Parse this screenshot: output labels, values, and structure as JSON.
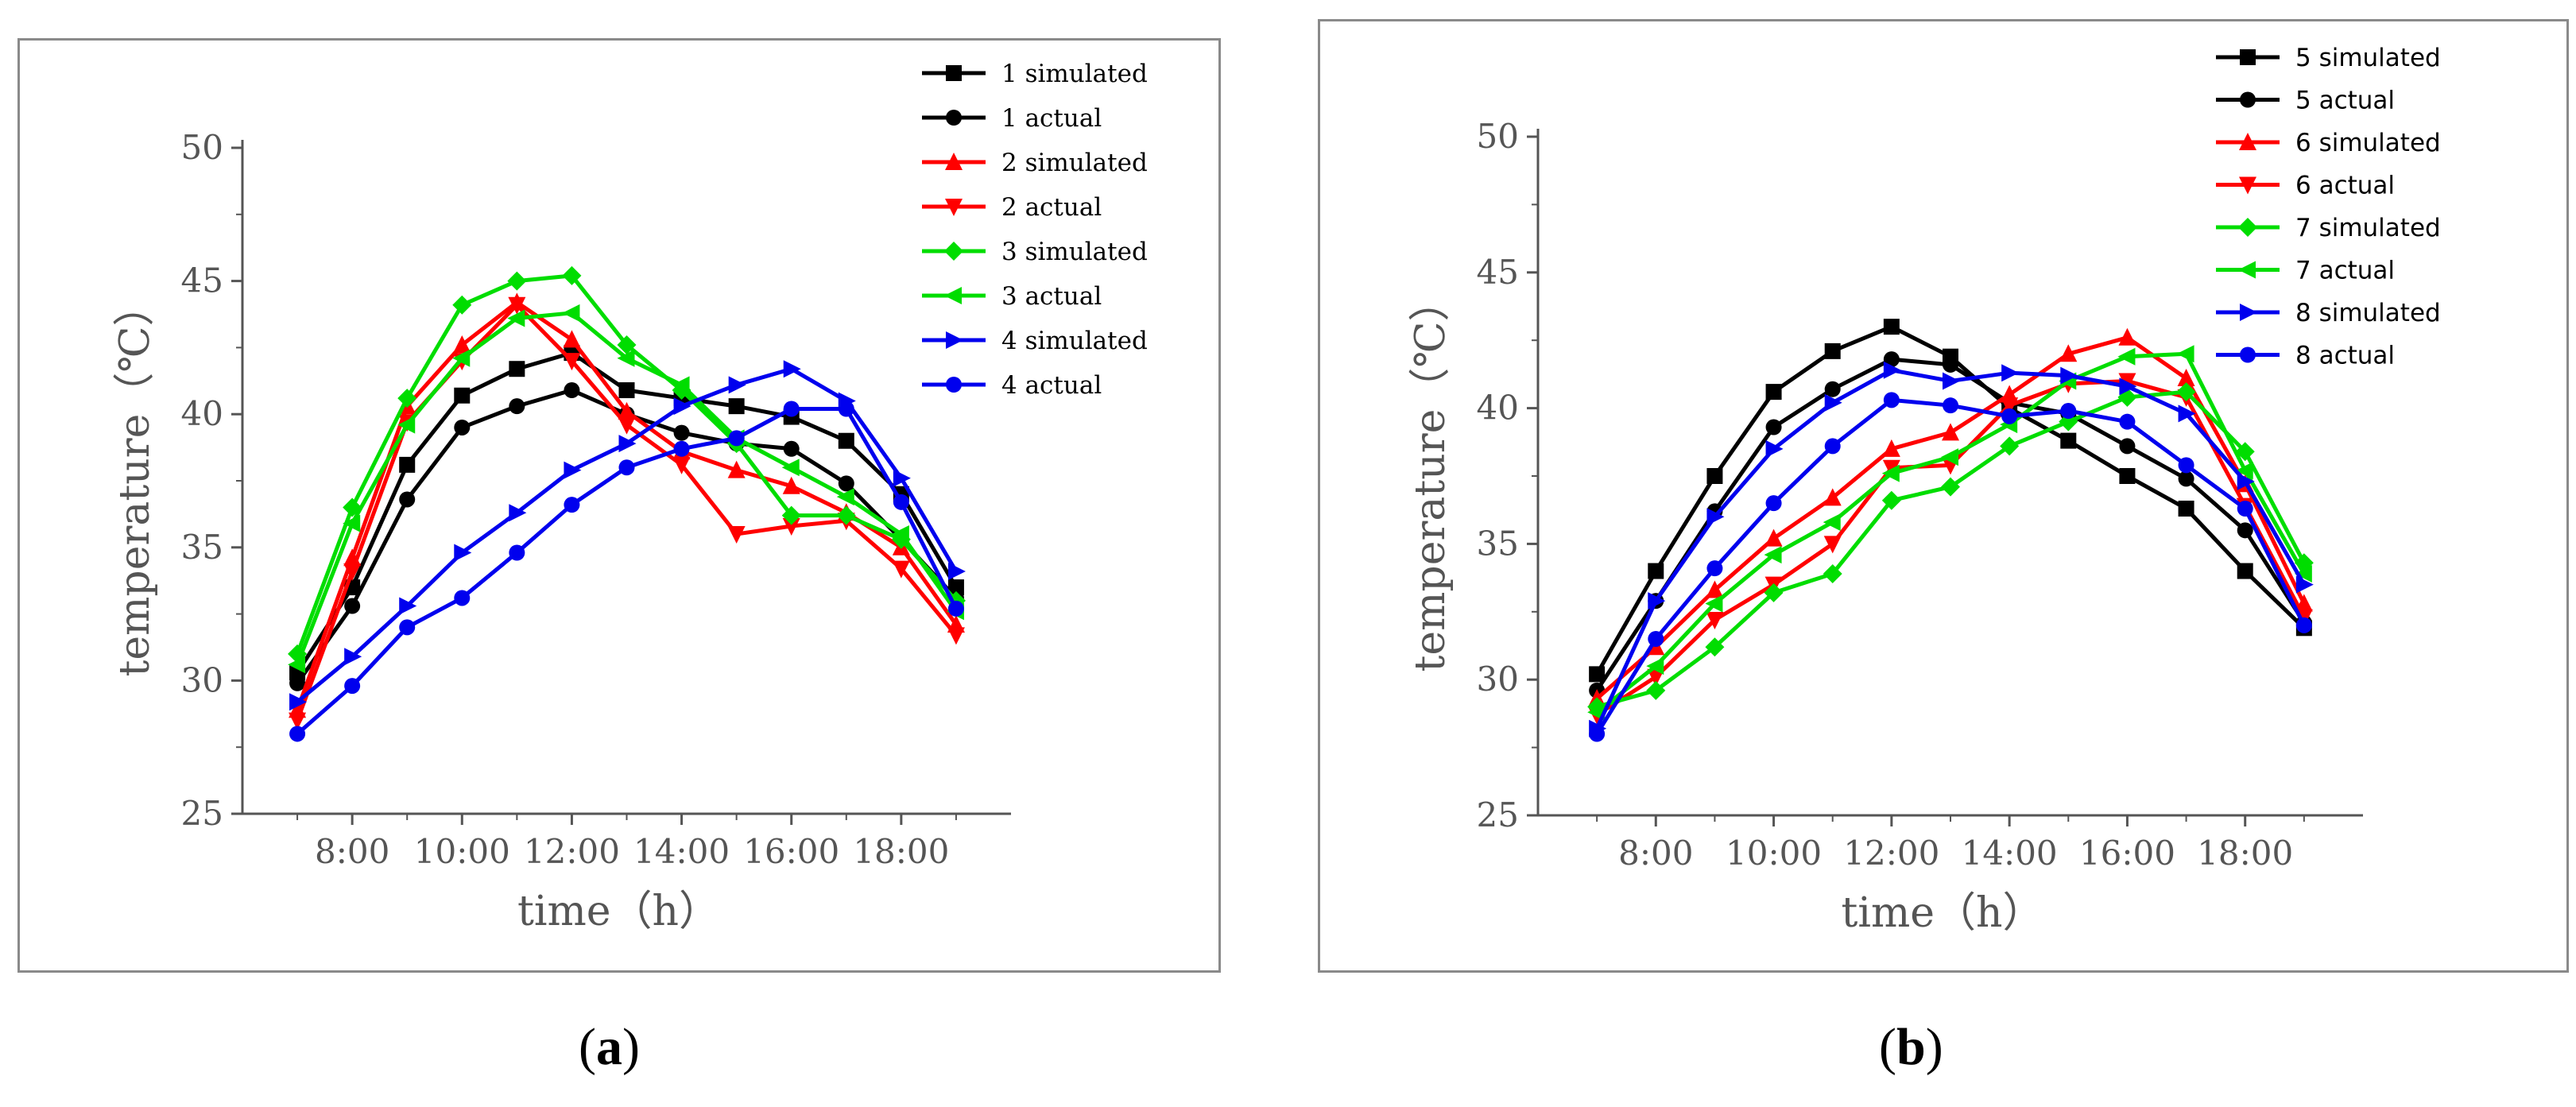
{
  "chart_data": [
    {
      "type": "line",
      "panel_label": "a",
      "xlabel": "time（h）",
      "ylabel": "temperature（℃）",
      "ylim": [
        25,
        50
      ],
      "yticks": [
        25,
        30,
        35,
        40,
        45,
        50
      ],
      "xlim": [
        6,
        20
      ],
      "xticks": [
        8,
        10,
        12,
        14,
        16,
        18
      ],
      "xtick_labels": [
        "8:00",
        "10:00",
        "12:00",
        "14:00",
        "16:00",
        "18:00"
      ],
      "x": [
        7,
        8,
        9,
        10,
        11,
        12,
        13,
        14,
        15,
        16,
        17,
        18,
        19
      ],
      "legend_position": "top-right",
      "series": [
        {
          "name": "1 simulated",
          "color": "#000000",
          "marker": "square",
          "values": [
            30.3,
            33.5,
            38.1,
            40.7,
            41.7,
            42.3,
            40.9,
            40.6,
            40.3,
            39.9,
            39.0,
            37.0,
            33.5
          ]
        },
        {
          "name": "1 actual",
          "color": "#000000",
          "marker": "circle",
          "values": [
            29.9,
            32.8,
            36.8,
            39.5,
            40.3,
            40.9,
            40.0,
            39.3,
            38.9,
            38.7,
            37.4,
            35.3,
            33.1
          ]
        },
        {
          "name": "2 simulated",
          "color": "#ff0000",
          "marker": "triangle-up",
          "values": [
            28.9,
            34.6,
            40.3,
            42.6,
            44.2,
            42.8,
            40.1,
            38.6,
            37.9,
            37.3,
            36.3,
            35.0,
            32.1
          ]
        },
        {
          "name": "2 actual",
          "color": "#ff0000",
          "marker": "triangle-down",
          "values": [
            28.5,
            34.1,
            39.7,
            42.0,
            44.1,
            42.0,
            39.6,
            38.1,
            35.5,
            35.8,
            36.0,
            34.2,
            31.7
          ]
        },
        {
          "name": "3 simulated",
          "color": "#00dd00",
          "marker": "diamond",
          "values": [
            31.0,
            36.5,
            40.6,
            44.1,
            45.0,
            45.2,
            42.6,
            40.9,
            38.9,
            36.2,
            36.2,
            35.3,
            33.0
          ]
        },
        {
          "name": "3 actual",
          "color": "#00dd00",
          "marker": "triangle-left",
          "values": [
            30.6,
            35.9,
            39.6,
            42.1,
            43.6,
            43.8,
            42.1,
            41.1,
            39.1,
            38.0,
            36.9,
            35.5,
            32.6
          ]
        },
        {
          "name": "4 simulated",
          "color": "#0000ee",
          "marker": "triangle-right",
          "values": [
            29.2,
            30.9,
            32.8,
            34.8,
            36.3,
            37.9,
            38.9,
            40.3,
            41.1,
            41.7,
            40.5,
            37.6,
            34.1
          ]
        },
        {
          "name": "4 actual",
          "color": "#0000ee",
          "marker": "circle",
          "values": [
            28.0,
            29.8,
            32.0,
            33.1,
            34.8,
            36.6,
            38.0,
            38.7,
            39.1,
            40.2,
            40.2,
            36.7,
            32.7
          ]
        }
      ]
    },
    {
      "type": "line",
      "panel_label": "b",
      "xlabel": "time（h）",
      "ylabel": "temperature（℃）",
      "ylim": [
        25,
        50
      ],
      "yticks": [
        25,
        30,
        35,
        40,
        45,
        50
      ],
      "xlim": [
        6,
        20
      ],
      "xticks": [
        8,
        10,
        12,
        14,
        16,
        18
      ],
      "xtick_labels": [
        "8:00",
        "10:00",
        "12:00",
        "14:00",
        "16:00",
        "18:00"
      ],
      "x": [
        7,
        8,
        9,
        10,
        11,
        12,
        13,
        14,
        15,
        16,
        17,
        18,
        19
      ],
      "legend_position": "top-right",
      "series": [
        {
          "name": "5 simulated",
          "color": "#000000",
          "marker": "square",
          "values": [
            30.2,
            34.0,
            37.5,
            40.6,
            42.1,
            43.0,
            41.9,
            40.0,
            38.8,
            37.5,
            36.3,
            34.0,
            31.9
          ]
        },
        {
          "name": "5 actual",
          "color": "#000000",
          "marker": "circle",
          "values": [
            29.6,
            32.9,
            36.2,
            39.3,
            40.7,
            41.8,
            41.6,
            40.2,
            39.8,
            38.6,
            37.4,
            35.5,
            32.1
          ]
        },
        {
          "name": "6 simulated",
          "color": "#ff0000",
          "marker": "triangle-up",
          "values": [
            29.3,
            31.2,
            33.3,
            35.2,
            36.7,
            38.5,
            39.1,
            40.5,
            42.0,
            42.6,
            41.1,
            37.2,
            32.8
          ]
        },
        {
          "name": "6 actual",
          "color": "#ff0000",
          "marker": "triangle-down",
          "values": [
            28.7,
            30.1,
            32.2,
            33.5,
            35.0,
            37.8,
            37.9,
            40.1,
            40.9,
            41.0,
            40.4,
            36.4,
            32.3
          ]
        },
        {
          "name": "7 simulated",
          "color": "#00dd00",
          "marker": "diamond",
          "values": [
            29.0,
            29.6,
            31.2,
            33.2,
            33.9,
            36.6,
            37.1,
            38.6,
            39.5,
            40.4,
            40.6,
            38.4,
            34.3
          ]
        },
        {
          "name": "7 actual",
          "color": "#00dd00",
          "marker": "triangle-left",
          "values": [
            28.8,
            30.5,
            32.8,
            34.6,
            35.8,
            37.6,
            38.2,
            39.4,
            41.0,
            41.9,
            42.0,
            37.7,
            33.9
          ]
        },
        {
          "name": "8 simulated",
          "color": "#0000ee",
          "marker": "triangle-right",
          "values": [
            28.2,
            32.9,
            36.0,
            38.5,
            40.2,
            41.4,
            41.0,
            41.3,
            41.2,
            40.8,
            39.8,
            37.3,
            33.5
          ]
        },
        {
          "name": "8 actual",
          "color": "#0000ee",
          "marker": "circle",
          "values": [
            28.0,
            31.5,
            34.1,
            36.5,
            38.6,
            40.3,
            40.1,
            39.7,
            39.9,
            39.5,
            37.9,
            36.3,
            32.0
          ]
        }
      ]
    }
  ],
  "captions": {
    "a": "(a)",
    "b": "(b)"
  }
}
